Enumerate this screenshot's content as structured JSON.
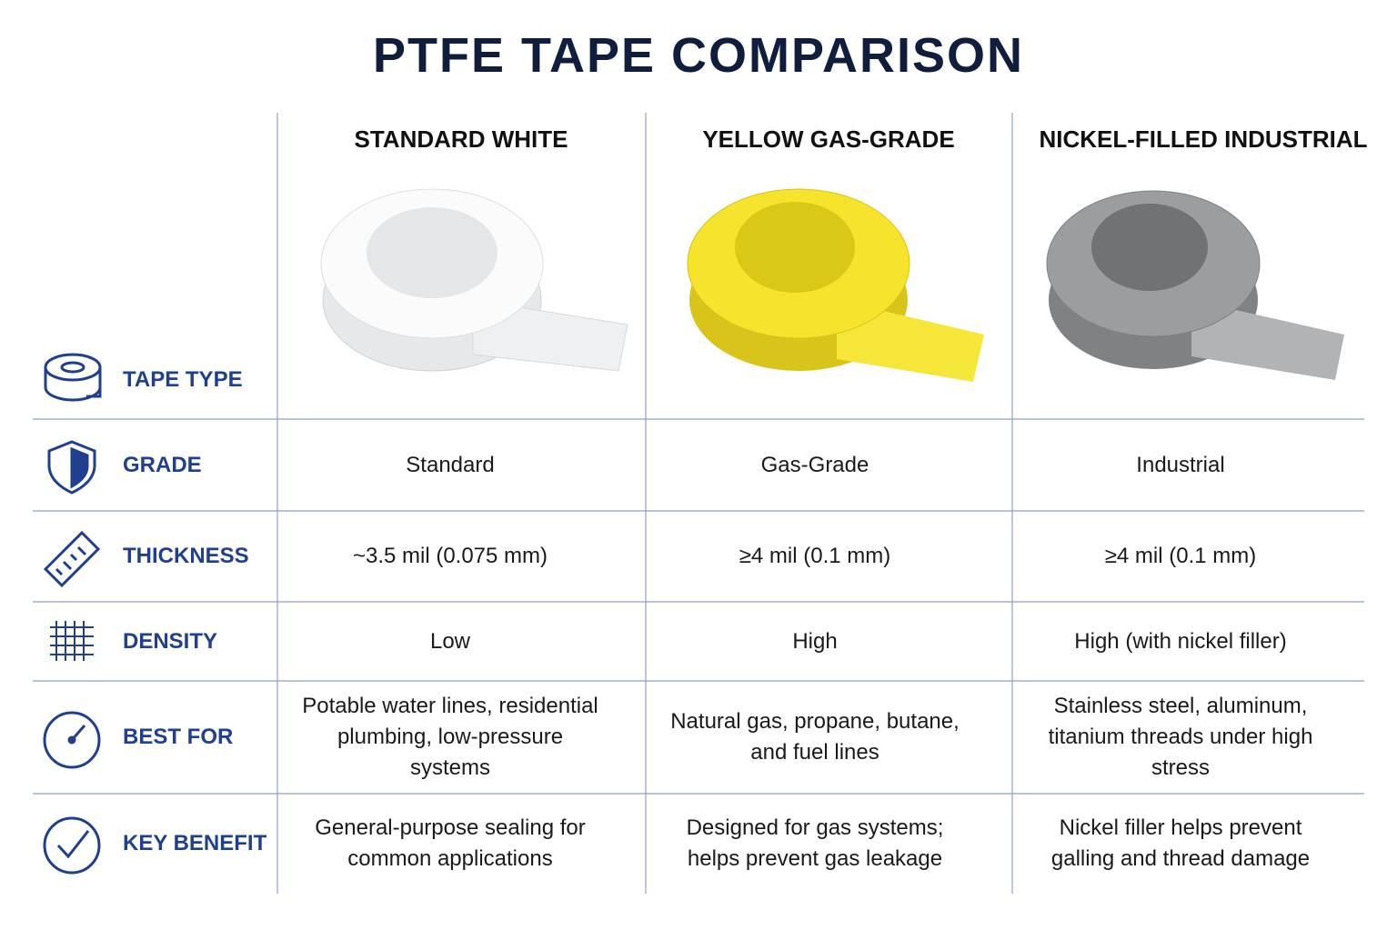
{
  "header": {
    "title": "PTFE TAPE COMPARISON"
  },
  "table": {
    "columns": [
      "STANDARD WHITE",
      "YELLOW GAS-GRADE",
      "NICKEL-FILLED INDUSTRIAL"
    ],
    "tape_type_label": "TAPE TYPE",
    "rows": [
      {
        "label": "GRADE",
        "cells": [
          "Standard",
          "Gas-Grade",
          "Industrial"
        ]
      },
      {
        "label": "THICKNESS",
        "cells": [
          "~3.5 mil (0.075 mm)",
          "≥4 mil (0.1 mm)",
          "≥4 mil (0.1 mm)"
        ]
      },
      {
        "label": "DENSITY",
        "cells": [
          "Low",
          "High",
          "High (with nickel filler)"
        ]
      },
      {
        "label": "BEST FOR",
        "cells": [
          "Potable water lines, residential plumbing, low-pressure systems",
          "Natural gas, propane, butane, and fuel lines",
          "Stainless steel, aluminum, titanium threads under high stress"
        ]
      },
      {
        "label": "KEY BENEFIT",
        "cells": [
          "General-purpose sealing for common applications",
          "Designed for gas systems; helps prevent gas leakage",
          "Nickel filler helps prevent galling and thread damage"
        ]
      }
    ]
  }
}
